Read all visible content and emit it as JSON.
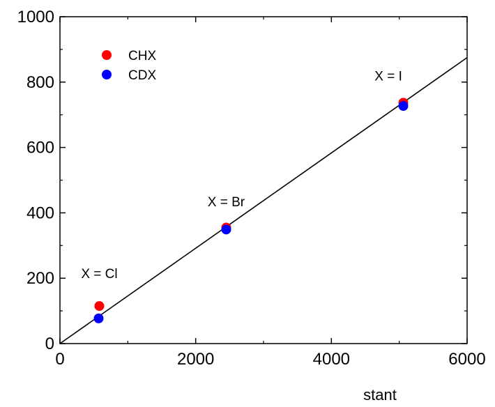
{
  "chart_data": {
    "type": "scatter",
    "title": "",
    "xlabel": "stant",
    "ylabel": "",
    "xlim": [
      0,
      6000
    ],
    "ylim": [
      0,
      1000
    ],
    "xticks": [
      0,
      2000,
      4000,
      6000
    ],
    "yticks": [
      0,
      200,
      400,
      600,
      800,
      1000
    ],
    "grid": false,
    "legend": {
      "placement": "top-left"
    },
    "series": [
      {
        "name": "CHX",
        "color": "#ff0000",
        "x": [
          580,
          2450,
          5060
        ],
        "y": [
          115,
          355,
          737
        ]
      },
      {
        "name": "CDX",
        "color": "#0000ff",
        "x": [
          570,
          2450,
          5060
        ],
        "y": [
          77,
          349,
          727
        ]
      }
    ],
    "fit_line": {
      "x": [
        0,
        6000
      ],
      "y": [
        0,
        875
      ],
      "color": "#000000"
    },
    "annotations": [
      {
        "text": "X = Cl",
        "x": 580,
        "y": 200
      },
      {
        "text": "X = Br",
        "x": 2450,
        "y": 420
      },
      {
        "text": "X = I",
        "x": 4840,
        "y": 805
      }
    ]
  }
}
